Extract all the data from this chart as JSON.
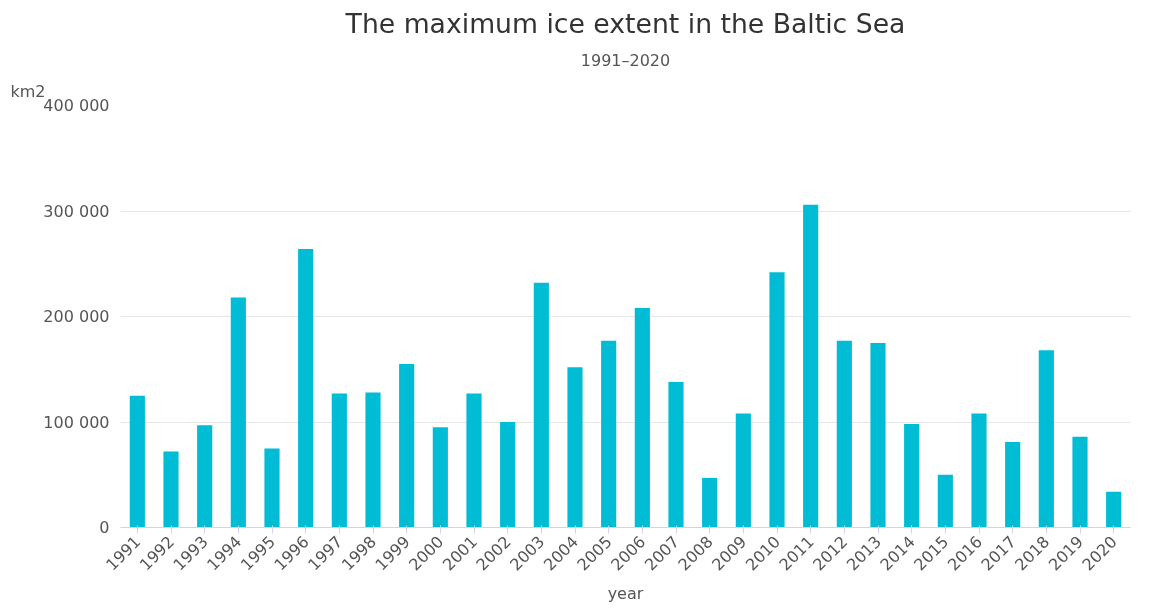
{
  "chart_data": {
    "type": "bar",
    "title": "The maximum ice extent in the Baltic Sea",
    "subtitle": "1991–2020",
    "ylabel": "km2",
    "xlabel": "year",
    "categories": [
      "1991",
      "1992",
      "1993",
      "1994",
      "1995",
      "1996",
      "1997",
      "1998",
      "1999",
      "2000",
      "2001",
      "2002",
      "2003",
      "2004",
      "2005",
      "2006",
      "2007",
      "2008",
      "2009",
      "2010",
      "2011",
      "2012",
      "2013",
      "2014",
      "2015",
      "2016",
      "2017",
      "2018",
      "2019",
      "2020"
    ],
    "values": [
      125000,
      72000,
      97000,
      218000,
      75000,
      264000,
      127000,
      128000,
      155000,
      95000,
      127000,
      100000,
      232000,
      152000,
      177000,
      208000,
      138000,
      47000,
      108000,
      242000,
      306000,
      177000,
      175000,
      98000,
      50000,
      108000,
      81000,
      168000,
      86000,
      34000
    ],
    "color": "#00bcd4",
    "ylim": [
      0,
      400000
    ],
    "yticks": [
      {
        "value": 0,
        "label": "0"
      },
      {
        "value": 100000,
        "label": "100 000"
      },
      {
        "value": 200000,
        "label": "200 000"
      },
      {
        "value": 300000,
        "label": "300 000"
      },
      {
        "value": 400000,
        "label": "400 000"
      }
    ],
    "grid": "y"
  }
}
